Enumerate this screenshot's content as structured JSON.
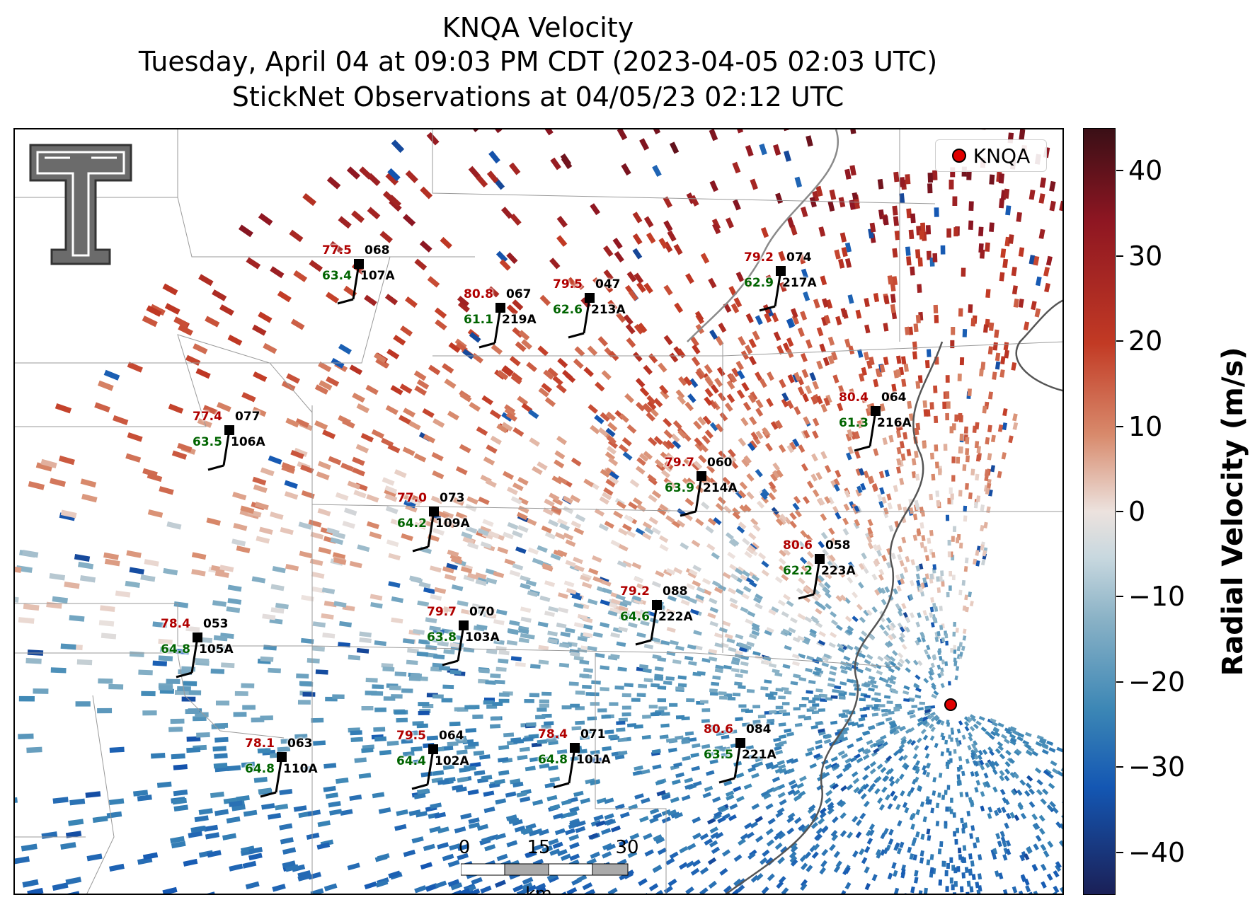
{
  "title": {
    "line1": "KNQA Velocity",
    "line2": "Tuesday, April 04 at 09:03 PM CDT (2023-04-05 02:03 UTC)",
    "line3": "StickNet Observations at 04/05/23 02:12 UTC"
  },
  "legend": {
    "label": "KNQA"
  },
  "colorbar": {
    "title": "Radial Velocity (m/s)",
    "ticks": [
      "40",
      "30",
      "20",
      "10",
      "0",
      "−10",
      "−20",
      "−30",
      "−40"
    ],
    "range": [
      -45,
      45
    ],
    "colors": {
      "max": "#3a0f16",
      "high": "#c23a24",
      "zero": "#ece2de",
      "low": "#3b86b5",
      "min": "#1b2057"
    }
  },
  "scalebar": {
    "ticks": [
      "0",
      "15",
      "30"
    ],
    "unit": "km"
  },
  "stations": [
    {
      "id": "107A",
      "temp": "77.5",
      "dew": "63.4",
      "dir": "068"
    },
    {
      "id": "219A",
      "temp": "80.8",
      "dew": "61.1",
      "dir": "067"
    },
    {
      "id": "213A",
      "temp": "79.5",
      "dew": "62.6",
      "dir": "047"
    },
    {
      "id": "217A",
      "temp": "79.2",
      "dew": "62.9",
      "dir": "074"
    },
    {
      "id": "216A",
      "temp": "80.4",
      "dew": "61.3",
      "dir": "064"
    },
    {
      "id": "106A",
      "temp": "77.4",
      "dew": "63.5",
      "dir": "077"
    },
    {
      "id": "214A",
      "temp": "79.7",
      "dew": "63.9",
      "dir": "060"
    },
    {
      "id": "109A",
      "temp": "77.0",
      "dew": "64.2",
      "dir": "073"
    },
    {
      "id": "223A",
      "temp": "80.6",
      "dew": "62.2",
      "dir": "058"
    },
    {
      "id": "222A",
      "temp": "79.2",
      "dew": "64.6",
      "dir": "088"
    },
    {
      "id": "105A",
      "temp": "78.4",
      "dew": "64.8",
      "dir": "053"
    },
    {
      "id": "103A",
      "temp": "79.7",
      "dew": "63.8",
      "dir": "070"
    },
    {
      "id": "110A",
      "temp": "78.1",
      "dew": "64.8",
      "dir": "063"
    },
    {
      "id": "102A",
      "temp": "79.5",
      "dew": "64.4",
      "dir": "064"
    },
    {
      "id": "101A",
      "temp": "78.4",
      "dew": "64.8",
      "dir": "071"
    },
    {
      "id": "221A",
      "temp": "80.6",
      "dew": "63.5",
      "dir": "084"
    }
  ]
}
